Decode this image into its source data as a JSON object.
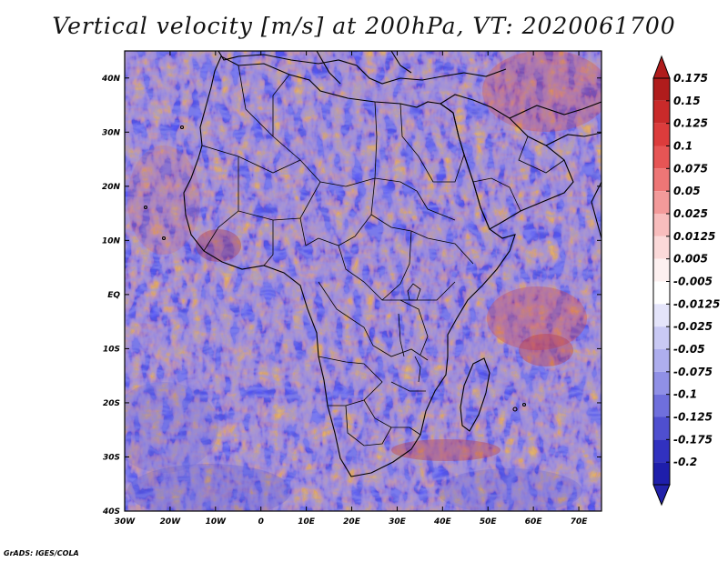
{
  "title": "Vertical velocity [m/s] at 200hPa, VT: 2020061700",
  "footer": "GrADS: IGES/COLA",
  "map": {
    "lon_range": [
      -30,
      75
    ],
    "lat_range": [
      -40,
      45
    ],
    "lon_ticks": [
      {
        "value": -30,
        "label": "30W"
      },
      {
        "value": -20,
        "label": "20W"
      },
      {
        "value": -10,
        "label": "10W"
      },
      {
        "value": 0,
        "label": "0"
      },
      {
        "value": 10,
        "label": "10E"
      },
      {
        "value": 20,
        "label": "20E"
      },
      {
        "value": 30,
        "label": "30E"
      },
      {
        "value": 40,
        "label": "40E"
      },
      {
        "value": 50,
        "label": "50E"
      },
      {
        "value": 60,
        "label": "60E"
      },
      {
        "value": 70,
        "label": "70E"
      }
    ],
    "lat_ticks": [
      {
        "value": 40,
        "label": "40N"
      },
      {
        "value": 30,
        "label": "30N"
      },
      {
        "value": 20,
        "label": "20N"
      },
      {
        "value": 10,
        "label": "10N"
      },
      {
        "value": 0,
        "label": "EQ"
      },
      {
        "value": -10,
        "label": "10S"
      },
      {
        "value": -20,
        "label": "20S"
      },
      {
        "value": -30,
        "label": "30S"
      },
      {
        "value": -40,
        "label": "40S"
      }
    ]
  },
  "colorbar": {
    "levels": [
      {
        "label": "0.175",
        "color": "#b01c1c"
      },
      {
        "label": "0.15",
        "color": "#c92a2a"
      },
      {
        "label": "0.125",
        "color": "#dc3c3c"
      },
      {
        "label": "0.1",
        "color": "#e65555"
      },
      {
        "label": "0.075",
        "color": "#ee7676"
      },
      {
        "label": "0.05",
        "color": "#f39a9a"
      },
      {
        "label": "0.025",
        "color": "#f8bdbd"
      },
      {
        "label": "0.0125",
        "color": "#fbd9d9"
      },
      {
        "label": "0.005",
        "color": "#fdf0f0"
      },
      {
        "label": "-0.005",
        "color": "#ffffff"
      },
      {
        "label": "-0.0125",
        "color": "#e4e4fa"
      },
      {
        "label": "-0.025",
        "color": "#c9c9f4"
      },
      {
        "label": "-0.05",
        "color": "#aeaeee"
      },
      {
        "label": "-0.075",
        "color": "#9090e6"
      },
      {
        "label": "-0.1",
        "color": "#6f6fdc"
      },
      {
        "label": "-0.125",
        "color": "#4f4fcf"
      },
      {
        "label": "-0.175",
        "color": "#3131bf"
      },
      {
        "label": "-0.2",
        "color": "#1e1eab"
      }
    ],
    "bottom_color": "#2222aa"
  }
}
